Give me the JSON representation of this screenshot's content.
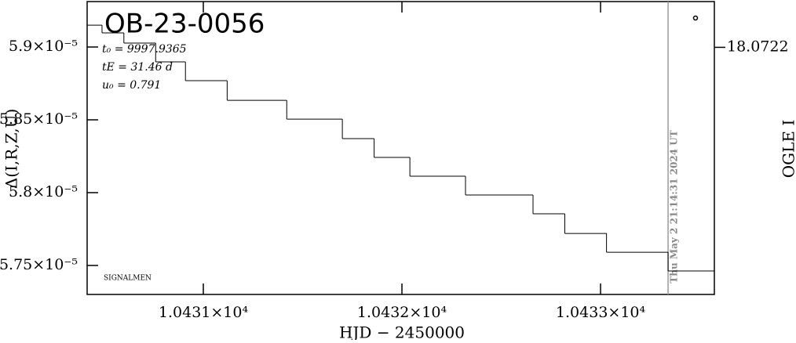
{
  "chart_data": {
    "type": "line",
    "title": "OB-23-0056",
    "parameters": [
      "t₀ = 9997.9365",
      "tE = 31.46 d",
      "u₀ = 0.791"
    ],
    "note": "SIGNALMEN",
    "timestamp": "Thu May  2 21:14:31 2024 UT",
    "x_label": "HJD − 2450000",
    "y_label": "Δ(I,R,Z,U)",
    "y2_label": "OGLE I",
    "xlim": [
      10430.415,
      10433.573
    ],
    "xticks": [
      {
        "value": 10431,
        "label": "1.0431×10⁴"
      },
      {
        "value": 10432,
        "label": "1.0432×10⁴"
      },
      {
        "value": 10433,
        "label": "1.0433×10⁴"
      }
    ],
    "ylim": [
      5.7301e-05,
      5.9312e-05
    ],
    "yticks": [
      {
        "value": 5.9e-05,
        "label": "5.9×10⁻⁵"
      },
      {
        "value": 5.85e-05,
        "label": "5.85×10⁻⁵"
      },
      {
        "value": 5.8e-05,
        "label": "5.8×10⁻⁵"
      },
      {
        "value": 5.75e-05,
        "label": "5.75×10⁻⁵"
      }
    ],
    "y2lim": [
      18.07195,
      18.07355
    ],
    "y2ticks": [
      18.0722
    ],
    "marker_x": 10433.34,
    "step": true,
    "series": [
      {
        "color": "#000000",
        "x": [
          10430.415,
          10430.49,
          10430.6,
          10430.76,
          10430.91,
          10431.12,
          10431.42,
          10431.7,
          10431.86,
          10432.04,
          10432.32,
          10432.66,
          10432.82,
          10433.03,
          10433.34
        ],
        "values": [
          5.915e-05,
          5.9097e-05,
          5.9027e-05,
          5.8898e-05,
          5.8769e-05,
          5.8634e-05,
          5.8505e-05,
          5.8371e-05,
          5.8242e-05,
          5.8113e-05,
          5.7984e-05,
          5.7855e-05,
          5.772e-05,
          5.7591e-05,
          5.7462e-05
        ]
      },
      {
        "color": "#000000",
        "axis": "y2",
        "x": [
          10433.478
        ],
        "values": [
          18.07204
        ]
      }
    ]
  }
}
